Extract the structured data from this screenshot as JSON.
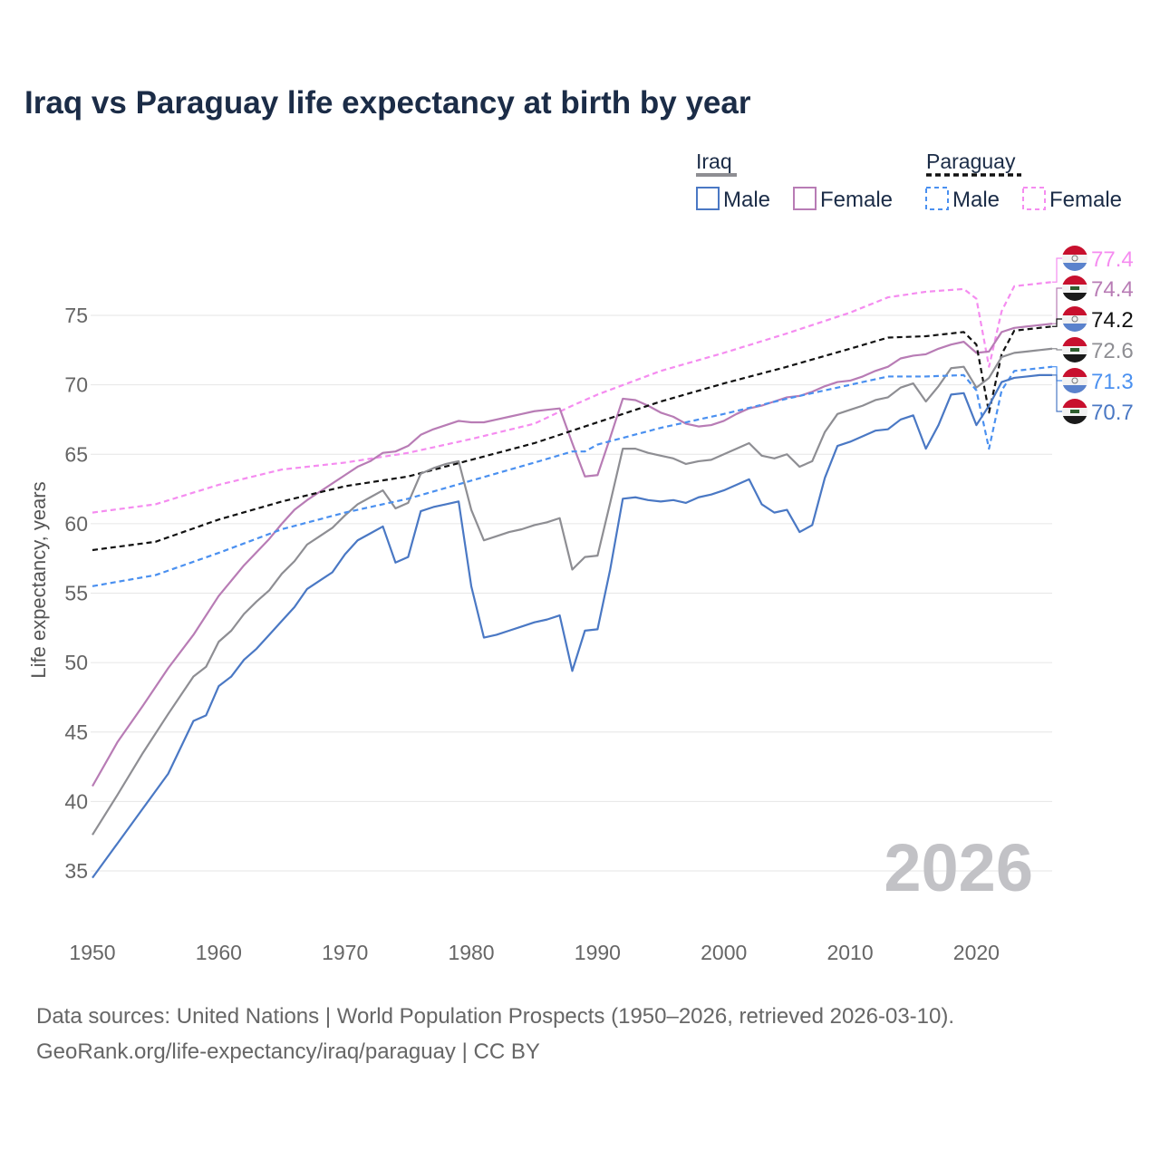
{
  "title": "Iraq vs Paraguay life expectancy at birth by year",
  "sources": {
    "line1": "Data sources: United Nations | World Population Prospects (1950–2026, retrieved 2026-03-10).",
    "line2": "GeoRank.org/life-expectancy/iraq/paraguay | CC BY"
  },
  "chart_data": {
    "type": "line",
    "title": "Iraq vs Paraguay life expectancy at birth by year",
    "xlabel": "",
    "ylabel": "Life expectancy, years",
    "xlim": [
      1950,
      2026
    ],
    "ylim": [
      33,
      79
    ],
    "yticks": [
      35,
      40,
      45,
      50,
      55,
      60,
      65,
      70,
      75
    ],
    "xticks": [
      1950,
      1960,
      1970,
      1980,
      1990,
      2000,
      2010,
      2020
    ],
    "grid": true,
    "year_watermark": "2026",
    "legend": {
      "placement": "top-right",
      "groups": [
        {
          "label": "Iraq",
          "items": [
            "Male",
            "Female"
          ]
        },
        {
          "label": "Paraguay",
          "items": [
            "Male",
            "Female"
          ]
        }
      ]
    },
    "colors": {
      "iraq": "#8e8e93",
      "iraq_male": "#4a78c4",
      "iraq_female": "#b87cb5",
      "paraguay": "#111111",
      "paraguay_male": "#4a90f0",
      "paraguay_female": "#f58cf0"
    },
    "series": [
      {
        "key": "paraguay_female",
        "name": "Paraguay Female",
        "dashed": true,
        "country": "paraguay",
        "end_label": "77.4",
        "x": [
          1950,
          1955,
          1960,
          1965,
          1970,
          1975,
          1980,
          1985,
          1988,
          1990,
          1995,
          2000,
          2005,
          2010,
          2013,
          2016,
          2019,
          2020,
          2021,
          2022,
          2023,
          2026
        ],
        "y": [
          60.8,
          61.4,
          62.8,
          63.9,
          64.4,
          65.1,
          66.1,
          67.2,
          68.5,
          69.3,
          71.0,
          72.3,
          73.7,
          75.2,
          76.3,
          76.7,
          76.9,
          76.2,
          71.3,
          75.3,
          77.1,
          77.4
        ]
      },
      {
        "key": "iraq_female",
        "name": "Iraq Female",
        "dashed": false,
        "country": "iraq",
        "end_label": "74.4",
        "x": [
          1950,
          1952,
          1954,
          1956,
          1958,
          1960,
          1962,
          1964,
          1965,
          1966,
          1967,
          1968,
          1969,
          1970,
          1971,
          1972,
          1973,
          1974,
          1975,
          1976,
          1977,
          1978,
          1979,
          1980,
          1981,
          1982,
          1983,
          1984,
          1985,
          1986,
          1987,
          1988,
          1989,
          1990,
          1991,
          1992,
          1993,
          1994,
          1995,
          1996,
          1997,
          1998,
          1999,
          2000,
          2001,
          2002,
          2003,
          2004,
          2005,
          2006,
          2007,
          2008,
          2009,
          2010,
          2011,
          2012,
          2013,
          2014,
          2015,
          2016,
          2017,
          2018,
          2019,
          2020,
          2021,
          2022,
          2023,
          2024,
          2025,
          2026
        ],
        "y": [
          41.1,
          44.3,
          46.9,
          49.6,
          52.0,
          54.8,
          57.0,
          58.9,
          60.0,
          61.0,
          61.7,
          62.3,
          62.9,
          63.5,
          64.1,
          64.5,
          65.1,
          65.2,
          65.6,
          66.4,
          66.8,
          67.1,
          67.4,
          67.3,
          67.3,
          67.5,
          67.7,
          67.9,
          68.1,
          68.2,
          68.3,
          65.8,
          63.4,
          63.5,
          66.2,
          69.0,
          68.9,
          68.5,
          68.0,
          67.7,
          67.2,
          67.0,
          67.1,
          67.4,
          67.9,
          68.3,
          68.5,
          68.8,
          69.1,
          69.2,
          69.5,
          69.9,
          70.2,
          70.3,
          70.6,
          71.0,
          71.3,
          71.9,
          72.1,
          72.2,
          72.6,
          72.9,
          73.1,
          72.3,
          72.4,
          73.8,
          74.1,
          74.2,
          74.3,
          74.4
        ]
      },
      {
        "key": "paraguay",
        "name": "Paraguay",
        "dashed": true,
        "country": "paraguay",
        "end_label": "74.2",
        "x": [
          1950,
          1955,
          1960,
          1965,
          1970,
          1975,
          1980,
          1985,
          1990,
          1995,
          2000,
          2005,
          2010,
          2013,
          2016,
          2019,
          2020,
          2021,
          2022,
          2023,
          2026
        ],
        "y": [
          58.1,
          58.7,
          60.3,
          61.6,
          62.7,
          63.4,
          64.6,
          65.8,
          67.3,
          68.8,
          70.1,
          71.3,
          72.6,
          73.4,
          73.5,
          73.8,
          72.9,
          68.0,
          72.2,
          73.9,
          74.2
        ]
      },
      {
        "key": "iraq",
        "name": "Iraq",
        "dashed": false,
        "country": "iraq",
        "end_label": "72.6",
        "x": [
          1950,
          1952,
          1954,
          1956,
          1958,
          1959,
          1960,
          1961,
          1962,
          1963,
          1964,
          1965,
          1966,
          1967,
          1968,
          1969,
          1970,
          1971,
          1972,
          1973,
          1974,
          1975,
          1976,
          1977,
          1978,
          1979,
          1980,
          1981,
          1982,
          1983,
          1984,
          1985,
          1986,
          1987,
          1988,
          1989,
          1990,
          1991,
          1992,
          1993,
          1994,
          1995,
          1996,
          1997,
          1998,
          1999,
          2000,
          2001,
          2002,
          2003,
          2004,
          2005,
          2006,
          2007,
          2008,
          2009,
          2010,
          2011,
          2012,
          2013,
          2014,
          2015,
          2016,
          2017,
          2018,
          2019,
          2020,
          2021,
          2022,
          2023,
          2024,
          2025,
          2026
        ],
        "y": [
          37.6,
          40.5,
          43.5,
          46.3,
          49.0,
          49.7,
          51.5,
          52.3,
          53.5,
          54.4,
          55.2,
          56.4,
          57.3,
          58.5,
          59.1,
          59.7,
          60.6,
          61.4,
          61.9,
          62.4,
          61.1,
          61.5,
          63.6,
          64.0,
          64.3,
          64.5,
          61.0,
          58.8,
          59.1,
          59.4,
          59.6,
          59.9,
          60.1,
          60.4,
          56.7,
          57.6,
          57.7,
          61.5,
          65.4,
          65.4,
          65.1,
          64.9,
          64.7,
          64.3,
          64.5,
          64.6,
          65.0,
          65.4,
          65.8,
          64.9,
          64.7,
          65.0,
          64.1,
          64.5,
          66.6,
          67.9,
          68.2,
          68.5,
          68.9,
          69.1,
          69.8,
          70.1,
          68.8,
          69.9,
          71.2,
          71.3,
          69.8,
          70.5,
          72.0,
          72.3,
          72.4,
          72.5,
          72.6
        ]
      },
      {
        "key": "paraguay_male",
        "name": "Paraguay Male",
        "dashed": true,
        "country": "paraguay",
        "end_label": "71.3",
        "x": [
          1950,
          1955,
          1960,
          1965,
          1970,
          1975,
          1980,
          1985,
          1988,
          1989,
          1990,
          1995,
          2000,
          2005,
          2010,
          2013,
          2016,
          2019,
          2020,
          2021,
          2022,
          2023,
          2026
        ],
        "y": [
          55.5,
          56.3,
          57.9,
          59.6,
          60.8,
          61.8,
          63.1,
          64.4,
          65.2,
          65.2,
          65.7,
          66.9,
          67.9,
          69.0,
          70.0,
          70.6,
          70.6,
          70.7,
          69.6,
          65.4,
          69.6,
          71.0,
          71.3
        ]
      },
      {
        "key": "iraq_male",
        "name": "Iraq Male",
        "dashed": false,
        "country": "iraq",
        "end_label": "70.7",
        "x": [
          1950,
          1952,
          1954,
          1956,
          1958,
          1959,
          1960,
          1961,
          1962,
          1963,
          1964,
          1965,
          1966,
          1967,
          1968,
          1969,
          1970,
          1971,
          1972,
          1973,
          1974,
          1975,
          1976,
          1977,
          1978,
          1979,
          1980,
          1981,
          1982,
          1983,
          1984,
          1985,
          1986,
          1987,
          1988,
          1989,
          1990,
          1991,
          1992,
          1993,
          1994,
          1995,
          1996,
          1997,
          1998,
          1999,
          2000,
          2001,
          2002,
          2003,
          2004,
          2005,
          2006,
          2007,
          2008,
          2009,
          2010,
          2011,
          2012,
          2013,
          2014,
          2015,
          2016,
          2017,
          2018,
          2019,
          2020,
          2021,
          2022,
          2023,
          2024,
          2025,
          2026
        ],
        "y": [
          34.5,
          37.0,
          39.5,
          42.0,
          45.8,
          46.2,
          48.3,
          49.0,
          50.2,
          51.0,
          52.0,
          53.0,
          54.0,
          55.3,
          55.9,
          56.5,
          57.8,
          58.8,
          59.3,
          59.8,
          57.2,
          57.6,
          60.9,
          61.2,
          61.4,
          61.6,
          55.5,
          51.8,
          52.0,
          52.3,
          52.6,
          52.9,
          53.1,
          53.4,
          49.4,
          52.3,
          52.4,
          56.7,
          61.8,
          61.9,
          61.7,
          61.6,
          61.7,
          61.5,
          61.9,
          62.1,
          62.4,
          62.8,
          63.2,
          61.4,
          60.8,
          61.0,
          59.4,
          59.9,
          63.3,
          65.6,
          65.9,
          66.3,
          66.7,
          66.8,
          67.5,
          67.8,
          65.4,
          67.1,
          69.3,
          69.4,
          67.1,
          68.5,
          70.2,
          70.5,
          70.6,
          70.7,
          70.7
        ]
      }
    ]
  }
}
